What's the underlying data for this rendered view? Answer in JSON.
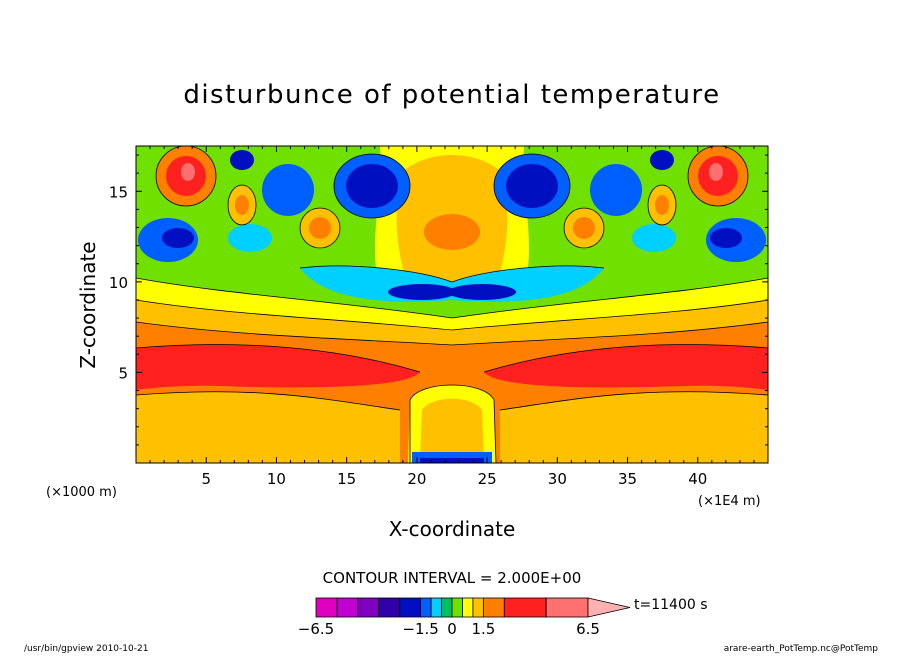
{
  "chart_data": {
    "type": "heatmap",
    "title": "disturbunce of potential temperature",
    "xlabel": "X-coordinate",
    "ylabel": "Z-coordinate",
    "x_unit_note": "(×1000 m)",
    "x_scale_note": "(×1E4 m)",
    "xlim": [
      0,
      45
    ],
    "ylim": [
      0,
      17.5
    ],
    "x_ticks": [
      5,
      10,
      15,
      20,
      25,
      30,
      35,
      40
    ],
    "y_ticks": [
      5,
      10,
      15
    ],
    "contour_interval_text": "CONTOUR INTERVAL = 2.000E+00",
    "time_label": "t=11400 s",
    "colorbar": {
      "labels": [
        {
          "value": -6.5,
          "text": "−6.5"
        },
        {
          "value": -1.5,
          "text": "−1.5"
        },
        {
          "value": 0,
          "text": "0"
        },
        {
          "value": 1.5,
          "text": "1.5"
        },
        {
          "value": 6.5,
          "text": "6.5"
        }
      ],
      "levels": [
        {
          "from": -6.5,
          "to": -5.5,
          "color": "#e000c0"
        },
        {
          "from": -5.5,
          "to": -4.5,
          "color": "#c000d0"
        },
        {
          "from": -4.5,
          "to": -3.5,
          "color": "#8000c0"
        },
        {
          "from": -3.5,
          "to": -2.5,
          "color": "#3000a8"
        },
        {
          "from": -2.5,
          "to": -1.5,
          "color": "#0010c0"
        },
        {
          "from": -1.5,
          "to": -1.0,
          "color": "#0060ff"
        },
        {
          "from": -1.0,
          "to": -0.5,
          "color": "#00d0ff"
        },
        {
          "from": -0.5,
          "to": 0.0,
          "color": "#00c060"
        },
        {
          "from": 0.0,
          "to": 0.5,
          "color": "#70e000"
        },
        {
          "from": 0.5,
          "to": 1.0,
          "color": "#ffff00"
        },
        {
          "from": 1.0,
          "to": 1.5,
          "color": "#ffc000"
        },
        {
          "from": 1.5,
          "to": 2.5,
          "color": "#ff8000"
        },
        {
          "from": 2.5,
          "to": 4.5,
          "color": "#ff2020"
        },
        {
          "from": 4.5,
          "to": 6.5,
          "color": "#ff7070"
        }
      ],
      "overflow_color": "#ffb0b0"
    }
  },
  "footer": {
    "left": "/usr/bin/gpview  2010-10-21",
    "right": "arare-earth_PotTemp.nc@PotTemp"
  }
}
